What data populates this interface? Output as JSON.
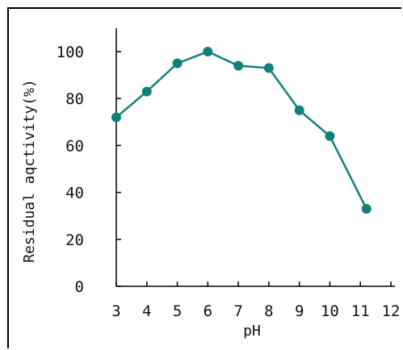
{
  "chart_data": {
    "type": "line",
    "title": "",
    "xlabel": "pH",
    "ylabel": "Residual aqctivity(%)",
    "x_ticks": [
      3,
      4,
      5,
      6,
      7,
      8,
      9,
      10,
      11,
      12
    ],
    "y_ticks": [
      0,
      20,
      40,
      60,
      80,
      100
    ],
    "xlim": [
      3,
      12
    ],
    "ylim": [
      0,
      110
    ],
    "grid": false,
    "series": [
      {
        "x": [
          3,
          4,
          5,
          6,
          7,
          8,
          9,
          10,
          11.2
        ],
        "y": [
          72,
          83,
          95,
          100,
          94,
          93,
          75,
          64,
          33
        ],
        "color": "#12807a"
      }
    ]
  }
}
